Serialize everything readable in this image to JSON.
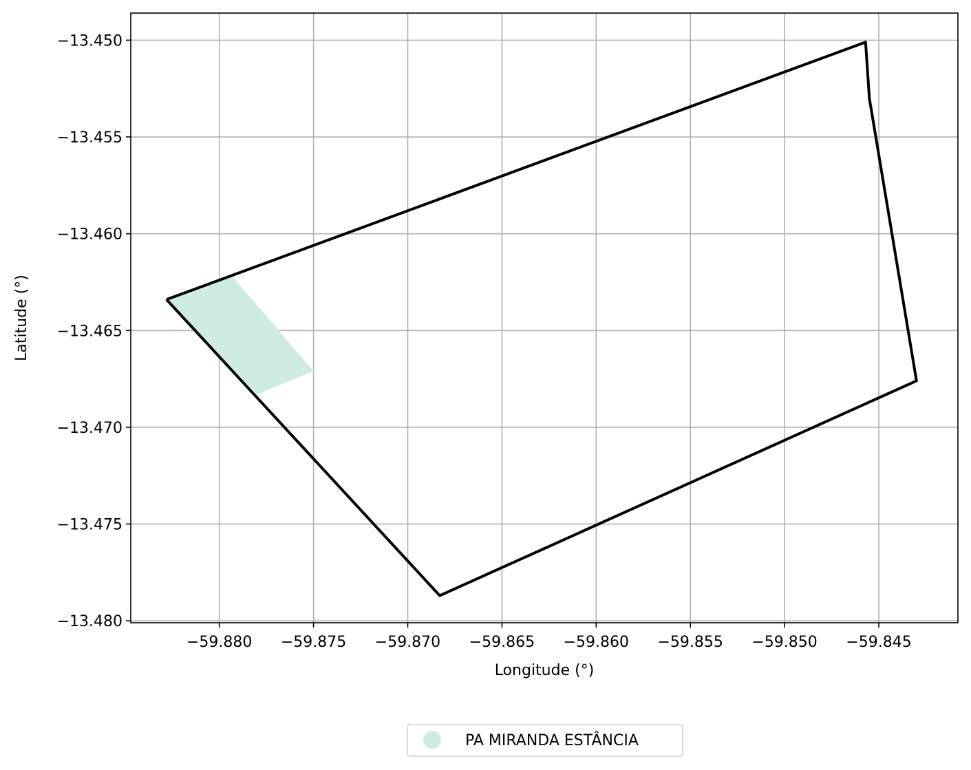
{
  "chart_data": {
    "type": "map",
    "xlabel": "Longitude (°)",
    "ylabel": "Latitude (°)",
    "xlim": [
      -59.8847,
      -59.8408
    ],
    "ylim": [
      -13.4801,
      -13.4486
    ],
    "grid": true,
    "xticks": [
      -59.88,
      -59.875,
      -59.87,
      -59.865,
      -59.86,
      -59.855,
      -59.85,
      -59.845
    ],
    "xtick_labels": [
      "−59.880",
      "−59.875",
      "−59.870",
      "−59.865",
      "−59.860",
      "−59.855",
      "−59.850",
      "−59.845"
    ],
    "yticks": [
      -13.45,
      -13.455,
      -13.46,
      -13.465,
      -13.47,
      -13.475,
      -13.48
    ],
    "ytick_labels": [
      "−13.450",
      "−13.455",
      "−13.460",
      "−13.465",
      "−13.470",
      "−13.475",
      "−13.480"
    ],
    "boundary": {
      "color": "#000000",
      "points": [
        [
          -59.8828,
          -13.4634
        ],
        [
          -59.8457,
          -13.4501
        ],
        [
          -59.8455,
          -13.453
        ],
        [
          -59.843,
          -13.4676
        ],
        [
          -59.8683,
          -13.4787
        ],
        [
          -59.8828,
          -13.4634
        ]
      ]
    },
    "areas": [
      {
        "name": "PA MIRANDA ESTÂNCIA",
        "color": "#cfece0",
        "points": [
          [
            -59.8828,
            -13.4634
          ],
          [
            -59.8794,
            -13.4621
          ],
          [
            -59.875,
            -13.4671
          ],
          [
            -59.878,
            -13.4683
          ],
          [
            -59.8828,
            -13.4634
          ]
        ]
      }
    ],
    "legend": {
      "placement": "bottom-center",
      "entries": [
        "PA MIRANDA ESTÂNCIA"
      ]
    }
  }
}
